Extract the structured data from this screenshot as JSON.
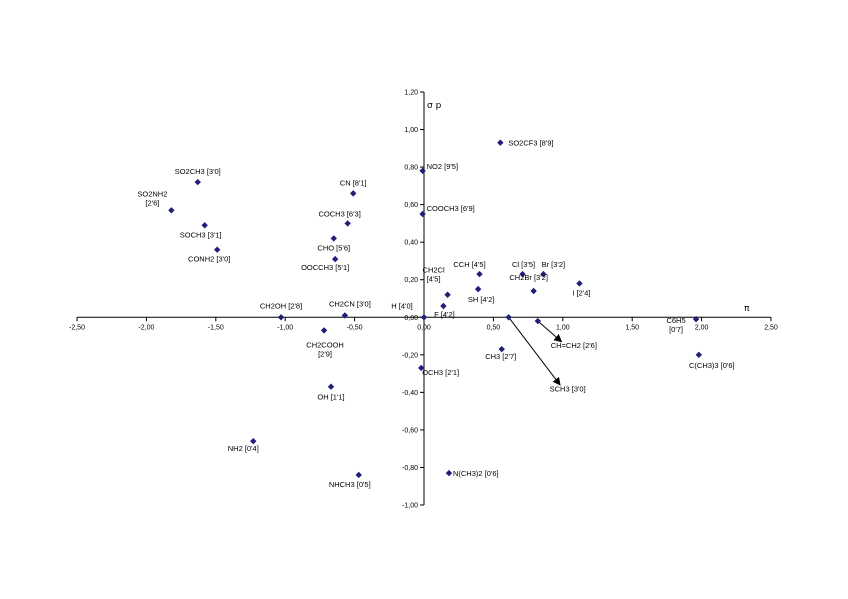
{
  "chart_data": {
    "type": "scatter",
    "xlabel": "π",
    "ylabel": "σ p",
    "xlim": [
      -2.5,
      2.5
    ],
    "ylim": [
      -1.0,
      1.2
    ],
    "x_ticks": [
      "-2,50",
      "-2,00",
      "-1,50",
      "-1,00",
      "-0,50",
      "0,00",
      "0,50",
      "1,00",
      "1,50",
      "2,00",
      "2,50"
    ],
    "y_ticks": [
      "1,20",
      "1,00",
      "0,80",
      "0,60",
      "0,40",
      "0,20",
      "0,00",
      "-0,20",
      "-0,40",
      "-0,60",
      "-0,80",
      "-1,00"
    ],
    "marker_color": "#1f1f7a",
    "points": [
      {
        "label": "SO2CF3  [8'9]",
        "x": 0.55,
        "y": 0.93
      },
      {
        "label": "NO2  [9'5]",
        "x": -0.01,
        "y": 0.78
      },
      {
        "label": "SO2CH3  [3'0]",
        "x": -1.63,
        "y": 0.72
      },
      {
        "label": "CN  [8'1]",
        "x": -0.51,
        "y": 0.66
      },
      {
        "label": "SO2NH2 [2'6]",
        "x": -1.82,
        "y": 0.57
      },
      {
        "label": "COOCH3  [6'9]",
        "x": -0.01,
        "y": 0.55
      },
      {
        "label": "COCH3  [6'3]",
        "x": -0.55,
        "y": 0.5
      },
      {
        "label": "SOCH3  [3'1]",
        "x": -1.58,
        "y": 0.49
      },
      {
        "label": "CHO  [5'6]",
        "x": -0.65,
        "y": 0.42
      },
      {
        "label": "CONH2  [3'0]",
        "x": -1.49,
        "y": 0.36
      },
      {
        "label": "OOCCH3  [5'1]",
        "x": -0.64,
        "y": 0.31
      },
      {
        "label": "CCH  [4'5]",
        "x": 0.4,
        "y": 0.23
      },
      {
        "label": "Cl  [3'5]",
        "x": 0.71,
        "y": 0.23
      },
      {
        "label": "Br  [3'2]",
        "x": 0.86,
        "y": 0.23
      },
      {
        "label": "I  [2'4]",
        "x": 1.12,
        "y": 0.18
      },
      {
        "label": "CH2Cl [4'5]",
        "x": 0.17,
        "y": 0.12
      },
      {
        "label": "SH  [4'2]",
        "x": 0.39,
        "y": 0.15
      },
      {
        "label": "CH2Br  [3'2]",
        "x": 0.79,
        "y": 0.14
      },
      {
        "label": "F  [4'2]",
        "x": 0.14,
        "y": 0.06
      },
      {
        "label": "H  [4'0]",
        "x": 0.0,
        "y": 0.0
      },
      {
        "label": "CH2OH  [2'8]",
        "x": -1.03,
        "y": 0.0
      },
      {
        "label": "CH2CN  [3'0]",
        "x": -0.57,
        "y": 0.01
      },
      {
        "label": "CH2COOH [2'9]",
        "x": -0.72,
        "y": -0.07
      },
      {
        "label": "C6H5 [0'7]",
        "x": 1.96,
        "y": -0.01
      },
      {
        "label": "CH=CH2  [2'6]",
        "x": 0.82,
        "y": -0.02
      },
      {
        "label": "SCH3  [3'0]",
        "x": 0.61,
        "y": 0.0
      },
      {
        "label": "CH3  [2'7]",
        "x": 0.56,
        "y": -0.17
      },
      {
        "label": "C(CH3)3  [0'6]",
        "x": 1.98,
        "y": -0.2
      },
      {
        "label": "OCH3  [2'1]",
        "x": -0.02,
        "y": -0.27
      },
      {
        "label": "OH  [1'1]",
        "x": -0.67,
        "y": -0.37
      },
      {
        "label": "NH2  [0'4]",
        "x": -1.23,
        "y": -0.66
      },
      {
        "label": "N(CH3)2  [0'6]",
        "x": 0.18,
        "y": -0.83
      },
      {
        "label": "NHCH3  [0'5]",
        "x": -0.47,
        "y": -0.84
      }
    ],
    "arrows": [
      {
        "from": [
          0.82,
          -0.02
        ],
        "to": [
          0.99,
          -0.13
        ]
      },
      {
        "from": [
          0.61,
          0.0
        ],
        "to": [
          0.98,
          -0.36
        ]
      }
    ]
  }
}
